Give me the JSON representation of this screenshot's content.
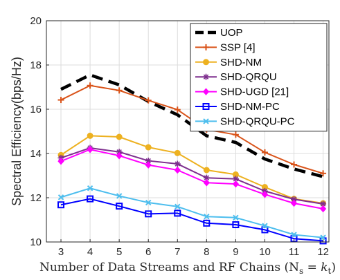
{
  "chart_data": {
    "type": "line",
    "xlabel": "Number of Data Streams and RF Chains (N",
    "xlabel_sub1": "s",
    "xlabel_eq": " = k",
    "xlabel_sub2": "t",
    "xlabel_end": ")",
    "ylabel": "Spectral Efficiency(bps/Hz)",
    "xlim": [
      2.5,
      12.2
    ],
    "ylim": [
      10,
      20
    ],
    "xticks": [
      3,
      4,
      5,
      6,
      7,
      8,
      9,
      10,
      11,
      12
    ],
    "yticks": [
      10,
      12,
      14,
      16,
      18,
      20
    ],
    "grid": true,
    "legend_position": "top-right",
    "x": [
      3,
      4,
      5,
      6,
      7,
      8,
      9,
      10,
      11,
      12
    ],
    "series": [
      {
        "name": "UOP",
        "color": "#000000",
        "marker": "none",
        "dashed": true,
        "values": [
          16.9,
          17.55,
          17.1,
          16.35,
          15.75,
          14.8,
          14.5,
          13.75,
          13.3,
          12.95
        ]
      },
      {
        "name": "SSP [4]",
        "color": "#D95319",
        "marker": "plus",
        "values": [
          16.42,
          17.07,
          16.85,
          16.4,
          15.98,
          15.08,
          14.85,
          14.05,
          13.5,
          13.1
        ]
      },
      {
        "name": "SHD-NM",
        "color": "#EDB120",
        "marker": "circle",
        "values": [
          13.93,
          14.8,
          14.75,
          14.28,
          14.02,
          13.25,
          13.05,
          12.48,
          11.95,
          11.75
        ]
      },
      {
        "name": "SHD-QRQU",
        "color": "#7E2F8E",
        "marker": "asterisk",
        "values": [
          13.8,
          14.25,
          14.07,
          13.67,
          13.53,
          12.9,
          12.85,
          12.3,
          11.93,
          11.72
        ]
      },
      {
        "name": "SHD-UGD [21]",
        "color": "#FF00FF",
        "marker": "diamond",
        "values": [
          13.65,
          14.18,
          13.9,
          13.48,
          13.25,
          12.68,
          12.62,
          12.15,
          11.75,
          11.5
        ]
      },
      {
        "name": "SHD-NM-PC",
        "color": "#0000FF",
        "marker": "square",
        "values": [
          11.68,
          11.95,
          11.62,
          11.27,
          11.3,
          10.85,
          10.78,
          10.55,
          10.15,
          10.05
        ]
      },
      {
        "name": "SHD-QRQU-PC",
        "color": "#4DBEEE",
        "marker": "x",
        "values": [
          12.02,
          12.43,
          12.08,
          11.78,
          11.6,
          11.15,
          11.1,
          10.73,
          10.33,
          10.2
        ]
      }
    ]
  }
}
